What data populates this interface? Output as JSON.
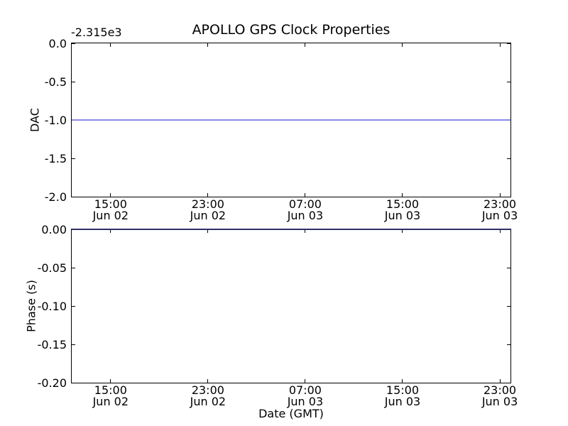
{
  "figure": {
    "title": "APOLLO GPS Clock Properties",
    "offset_text": "-2.315e3",
    "xlabel": "Date (GMT)",
    "background_color": "#ffffff",
    "spine_color": "#000000",
    "x_ticks": [
      {
        "time": "15:00",
        "date": "Jun 02"
      },
      {
        "time": "23:00",
        "date": "Jun 02"
      },
      {
        "time": "07:00",
        "date": "Jun 03"
      },
      {
        "time": "15:00",
        "date": "Jun 03"
      },
      {
        "time": "23:00",
        "date": "Jun 03"
      }
    ],
    "plots": [
      {
        "name": "dac",
        "ylabel": "DAC",
        "yticks": [
          "0.0",
          "-0.5",
          "-1.0",
          "-1.5",
          "-2.0"
        ],
        "ymax": 0.0,
        "ymin": -2.0,
        "line": {
          "value": -1.0,
          "color": "#8a8aec"
        }
      },
      {
        "name": "phase",
        "ylabel": "Phase (s)",
        "yticks": [
          "0.00",
          "-0.05",
          "-0.10",
          "-0.15",
          "-0.20"
        ],
        "ymax": 0.0,
        "ymin": -0.2,
        "line": {
          "value": 0.0,
          "color": "#30306b"
        }
      }
    ]
  },
  "chart_data": [
    {
      "type": "line",
      "title": "APOLLO GPS Clock Properties",
      "ylabel": "DAC",
      "xlabel": "",
      "y_axis_offset_text": "-2.315e3",
      "ylim": [
        -2.0,
        0.0
      ],
      "yticks": [
        0.0,
        -0.5,
        -1.0,
        -1.5,
        -2.0
      ],
      "xtick_labels": [
        "15:00 Jun 02",
        "23:00 Jun 02",
        "07:00 Jun 03",
        "15:00 Jun 03",
        "23:00 Jun 03"
      ],
      "grid": false,
      "legend": null,
      "series": [
        {
          "name": "DAC",
          "color": "blue",
          "constant_value": -1.0,
          "description": "flat horizontal line at -1.0 (with axis offset -2.315e3, actual DAC = -2316) spanning the entire visible time range"
        }
      ]
    },
    {
      "type": "line",
      "title": "",
      "ylabel": "Phase (s)",
      "xlabel": "Date (GMT)",
      "ylim": [
        -0.2,
        0.0
      ],
      "yticks": [
        0.0,
        -0.05,
        -0.1,
        -0.15,
        -0.2
      ],
      "xtick_labels": [
        "15:00 Jun 02",
        "23:00 Jun 02",
        "07:00 Jun 03",
        "15:00 Jun 03",
        "23:00 Jun 03"
      ],
      "grid": false,
      "legend": null,
      "series": [
        {
          "name": "Phase",
          "color": "blue",
          "constant_value": 0.0,
          "description": "flat horizontal line at 0.00 s spanning the entire visible time range, overlapping the top axis spine"
        }
      ]
    }
  ]
}
